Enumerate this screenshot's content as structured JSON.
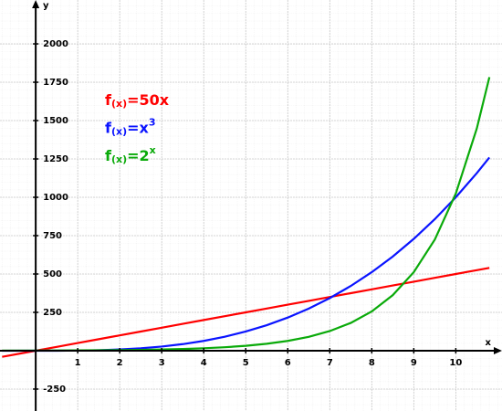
{
  "chart_data": {
    "type": "line",
    "xlabel": "x",
    "ylabel": "y",
    "x": [
      -0.8,
      0,
      0.5,
      1,
      1.5,
      2,
      2.5,
      3,
      3.5,
      4,
      4.5,
      5,
      5.5,
      6,
      6.5,
      7,
      7.5,
      8,
      8.5,
      9,
      9.5,
      10,
      10.5,
      10.8
    ],
    "series": [
      {
        "name": "f",
        "subscript": "(x)",
        "expression": "=50x",
        "color": "#ff0000",
        "values": [
          -40,
          0,
          25,
          50,
          75,
          100,
          125,
          150,
          175,
          200,
          225,
          250,
          275,
          300,
          325,
          350,
          375,
          400,
          425,
          450,
          475,
          500,
          525,
          540
        ]
      },
      {
        "name": "f",
        "subscript": "(x)",
        "expression": "=x",
        "superscript": "3",
        "color": "#0a14ff",
        "values": [
          -0.512,
          0,
          0.125,
          1,
          3.375,
          8,
          15.625,
          27,
          42.875,
          64,
          91.125,
          125,
          166.375,
          216,
          274.625,
          343,
          421.875,
          512,
          614.125,
          729,
          857.375,
          1000,
          1157.625,
          1259.712
        ]
      },
      {
        "name": "f",
        "subscript": "(x)",
        "expression": "=2",
        "superscript": "x",
        "color": "#0aaa0a",
        "values": [
          0.574,
          1,
          1.414,
          2,
          2.828,
          4,
          5.657,
          8,
          11.314,
          16,
          22.627,
          32,
          45.255,
          64,
          90.51,
          128,
          181.019,
          256,
          362.039,
          512,
          724.077,
          1024,
          1448.155,
          1782.89
        ]
      }
    ],
    "xlim": [
      -0.85,
      11.1
    ],
    "ylim": [
      -393,
      2286
    ],
    "xticks": [
      1,
      2,
      3,
      4,
      5,
      6,
      7,
      8,
      9,
      10
    ],
    "yticks": [
      -250,
      250,
      500,
      750,
      1000,
      1250,
      1500,
      1750,
      2000
    ],
    "grid": true
  }
}
